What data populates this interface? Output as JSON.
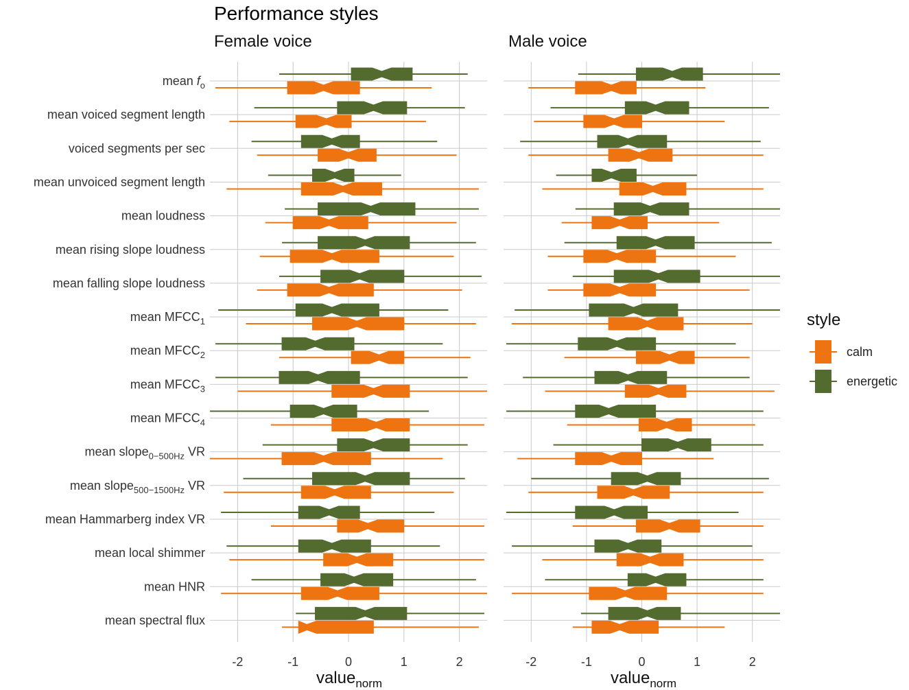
{
  "title": "Performance styles",
  "chart_data": {
    "type": "boxplot",
    "title": "Performance styles",
    "xlabel": "value",
    "xlabel_subscript": "norm",
    "xlim": [
      -2.5,
      2.5
    ],
    "xticks": [
      -2,
      -1,
      0,
      1,
      2
    ],
    "xtick_labels": [
      "-2",
      "-1",
      "0",
      "1",
      "2"
    ],
    "legend": {
      "title": "style",
      "position": "right",
      "entries": [
        {
          "key": "calm",
          "label": "calm",
          "color": "#EE7411"
        },
        {
          "key": "energetic",
          "label": "energetic",
          "color": "#546B30"
        }
      ]
    },
    "categories": [
      {
        "text": "mean ",
        "italic": "f",
        "sub": "o",
        "post": ""
      },
      {
        "text": "mean voiced segment length"
      },
      {
        "text": "voiced segments per sec"
      },
      {
        "text": "mean unvoiced segment length"
      },
      {
        "text": "mean loudness"
      },
      {
        "text": "mean rising slope loudness"
      },
      {
        "text": "mean falling slope loudness"
      },
      {
        "text": "mean MFCC",
        "sub": "1"
      },
      {
        "text": "mean MFCC",
        "sub": "2"
      },
      {
        "text": "mean MFCC",
        "sub": "3"
      },
      {
        "text": "mean MFCC",
        "sub": "4"
      },
      {
        "text": "mean slope",
        "sub": "0−500Hz",
        "post": " VR"
      },
      {
        "text": "mean slope",
        "sub": "500−1500Hz",
        "post": " VR"
      },
      {
        "text": "mean Hammarberg index VR"
      },
      {
        "text": "mean local shimmer"
      },
      {
        "text": "mean HNR"
      },
      {
        "text": "mean spectral flux"
      }
    ],
    "panels": [
      {
        "title": "Female voice",
        "energetic": [
          [
            -1.25,
            0.05,
            0.6,
            1.15,
            2.15
          ],
          [
            -1.7,
            -0.2,
            0.45,
            1.05,
            2.1
          ],
          [
            -1.75,
            -0.85,
            -0.3,
            0.2,
            1.6
          ],
          [
            -1.45,
            -0.65,
            -0.25,
            0.1,
            0.95
          ],
          [
            -1.15,
            -0.55,
            0.4,
            1.2,
            2.35
          ],
          [
            -1.2,
            -0.55,
            0.3,
            1.1,
            2.3
          ],
          [
            -1.25,
            -0.5,
            0.2,
            1.0,
            2.4
          ],
          [
            -2.35,
            -0.95,
            -0.3,
            0.55,
            1.8
          ],
          [
            -2.4,
            -1.2,
            -0.6,
            0.1,
            1.7
          ],
          [
            -2.4,
            -1.25,
            -0.55,
            0.2,
            2.15
          ],
          [
            -2.5,
            -1.05,
            -0.45,
            0.15,
            1.45
          ],
          [
            -1.55,
            -0.2,
            0.45,
            1.1,
            2.15
          ],
          [
            -1.9,
            -0.65,
            0.3,
            1.1,
            2.1
          ],
          [
            -2.3,
            -0.9,
            -0.35,
            0.2,
            1.55
          ],
          [
            -2.2,
            -0.9,
            -0.3,
            0.4,
            1.65
          ],
          [
            -1.75,
            -0.5,
            0.1,
            0.8,
            2.3
          ],
          [
            -0.95,
            -0.6,
            0.3,
            1.05,
            2.45
          ]
        ],
        "calm": [
          [
            -2.4,
            -1.1,
            -0.45,
            0.2,
            1.5
          ],
          [
            -2.15,
            -0.95,
            -0.4,
            0.05,
            1.4
          ],
          [
            -1.65,
            -0.55,
            0.0,
            0.5,
            1.95
          ],
          [
            -2.2,
            -0.85,
            -0.1,
            0.6,
            2.35
          ],
          [
            -1.5,
            -1.0,
            -0.35,
            0.35,
            1.95
          ],
          [
            -1.6,
            -1.05,
            -0.3,
            0.55,
            1.9
          ],
          [
            -1.65,
            -1.1,
            -0.35,
            0.45,
            2.05
          ],
          [
            -1.85,
            -0.65,
            0.15,
            1.0,
            2.3
          ],
          [
            -1.25,
            0.05,
            0.55,
            1.0,
            2.2
          ],
          [
            -2.0,
            -0.3,
            0.45,
            1.1,
            2.5
          ],
          [
            -1.4,
            -0.3,
            0.5,
            1.1,
            2.45
          ],
          [
            -2.5,
            -1.2,
            -0.45,
            0.4,
            1.7
          ],
          [
            -2.25,
            -0.85,
            -0.25,
            0.4,
            1.9
          ],
          [
            -1.4,
            -0.2,
            0.35,
            1.0,
            2.45
          ],
          [
            -2.15,
            -0.45,
            0.15,
            0.8,
            2.45
          ],
          [
            -2.3,
            -0.85,
            -0.2,
            0.55,
            2.5
          ],
          [
            -1.2,
            -0.9,
            -0.75,
            0.45,
            2.35
          ]
        ]
      },
      {
        "title": "Male voice",
        "energetic": [
          [
            -1.15,
            -0.1,
            0.55,
            1.1,
            2.5
          ],
          [
            -1.65,
            -0.3,
            0.25,
            0.85,
            2.3
          ],
          [
            -2.2,
            -0.8,
            -0.25,
            0.45,
            2.15
          ],
          [
            -1.55,
            -0.9,
            -0.55,
            -0.1,
            1.0
          ],
          [
            -1.2,
            -0.5,
            0.15,
            0.85,
            2.5
          ],
          [
            -1.4,
            -0.45,
            0.25,
            0.95,
            2.35
          ],
          [
            -1.25,
            -0.5,
            0.3,
            1.05,
            2.5
          ],
          [
            -2.3,
            -0.95,
            -0.15,
            0.65,
            2.5
          ],
          [
            -2.45,
            -1.15,
            -0.45,
            0.25,
            1.7
          ],
          [
            -2.15,
            -0.85,
            -0.25,
            0.45,
            1.95
          ],
          [
            -2.45,
            -1.2,
            -0.6,
            0.25,
            2.2
          ],
          [
            -1.6,
            0.0,
            0.65,
            1.25,
            2.2
          ],
          [
            -2.0,
            -0.55,
            0.1,
            0.7,
            2.3
          ],
          [
            -2.45,
            -1.2,
            -0.5,
            0.1,
            1.75
          ],
          [
            -2.35,
            -0.85,
            -0.25,
            0.35,
            2.0
          ],
          [
            -1.75,
            -0.25,
            0.25,
            0.8,
            2.2
          ],
          [
            -1.1,
            -0.6,
            0.1,
            0.7,
            2.5
          ]
        ],
        "calm": [
          [
            -2.05,
            -1.2,
            -0.55,
            -0.1,
            1.15
          ],
          [
            -1.95,
            -1.05,
            -0.5,
            0.0,
            1.5
          ],
          [
            -2.05,
            -0.6,
            -0.05,
            0.55,
            2.2
          ],
          [
            -1.8,
            -0.4,
            0.2,
            0.8,
            2.2
          ],
          [
            -1.45,
            -0.9,
            -0.4,
            0.1,
            1.4
          ],
          [
            -1.7,
            -1.05,
            -0.45,
            0.25,
            1.7
          ],
          [
            -1.7,
            -1.05,
            -0.4,
            0.25,
            1.95
          ],
          [
            -2.35,
            -0.6,
            0.1,
            0.75,
            2.0
          ],
          [
            -1.4,
            -0.1,
            0.5,
            0.95,
            1.95
          ],
          [
            -1.75,
            -0.3,
            0.3,
            0.8,
            2.4
          ],
          [
            -1.35,
            -0.05,
            0.45,
            0.9,
            2.05
          ],
          [
            -2.25,
            -1.2,
            -0.55,
            0.0,
            1.3
          ],
          [
            -2.05,
            -0.8,
            -0.15,
            0.5,
            2.2
          ],
          [
            -1.25,
            -0.1,
            0.5,
            1.05,
            2.2
          ],
          [
            -1.8,
            -0.45,
            0.15,
            0.75,
            2.2
          ],
          [
            -2.35,
            -0.95,
            -0.3,
            0.45,
            2.2
          ],
          [
            -1.25,
            -0.9,
            -0.4,
            0.3,
            1.5
          ]
        ]
      }
    ]
  }
}
